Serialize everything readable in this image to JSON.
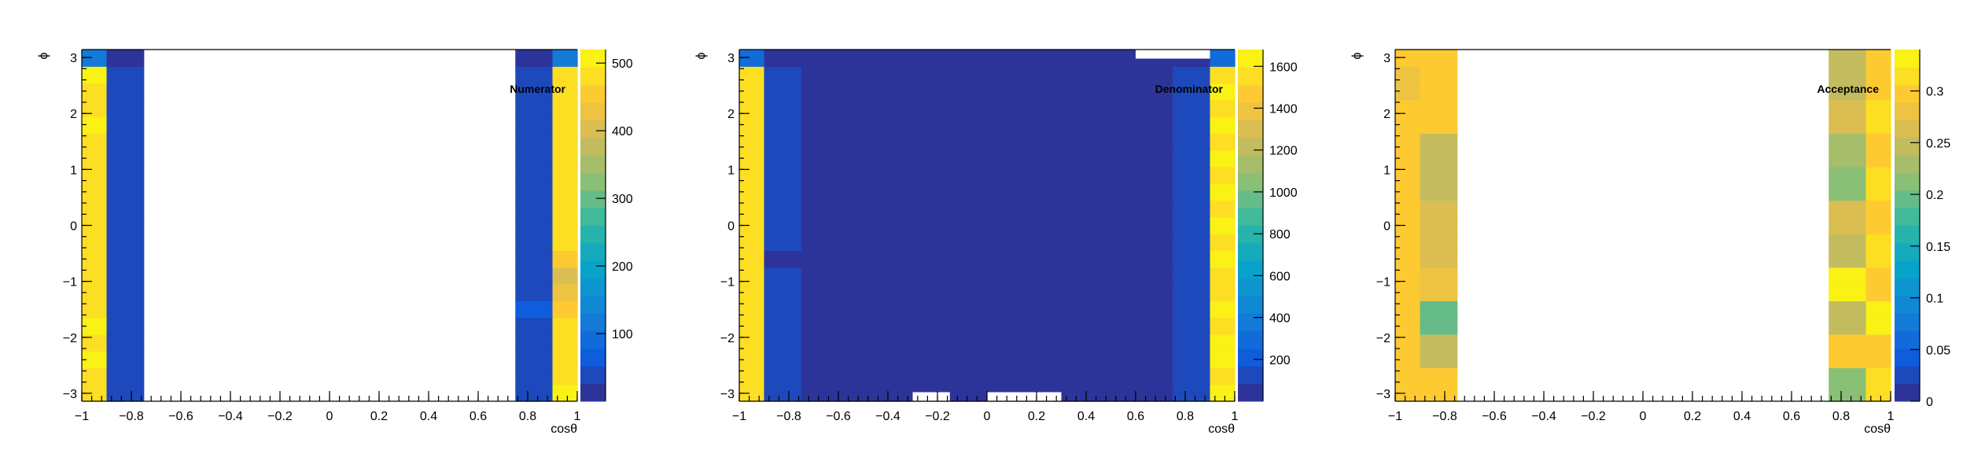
{
  "chart_data": [
    {
      "type": "heatmap",
      "title": "Numerator",
      "xlabel": "cosθ",
      "ylabel": "ϕ",
      "xlim": [
        -1,
        1
      ],
      "ylim": [
        -3.14159,
        3.14159
      ],
      "zlim": [
        0,
        520
      ],
      "x_ticks": [
        "−1",
        "−0.8",
        "−0.6",
        "−0.4",
        "−0.2",
        "0",
        "0.2",
        "0.4",
        "0.6",
        "0.8",
        "1"
      ],
      "y_ticks": [
        "−3",
        "−2",
        "−1",
        "0",
        "1",
        "2",
        "3"
      ],
      "z_ticks": [
        {
          "value": 100,
          "label": "100"
        },
        {
          "value": 200,
          "label": "200"
        },
        {
          "value": 300,
          "label": "300"
        },
        {
          "value": 400,
          "label": "400"
        },
        {
          "value": 500,
          "label": "500"
        }
      ],
      "x_edges": [
        -1.0,
        -0.9,
        -0.75,
        0.75,
        0.9,
        1.0
      ],
      "rows_bottom_to_top": [
        [
          475,
          40,
          null,
          40,
          505
        ],
        [
          485,
          40,
          null,
          40,
          470
        ],
        [
          495,
          40,
          null,
          30,
          480
        ],
        [
          490,
          40,
          null,
          40,
          490
        ],
        [
          495,
          40,
          null,
          40,
          480
        ],
        [
          485,
          30,
          null,
          70,
          460
        ],
        [
          490,
          30,
          null,
          30,
          440
        ],
        [
          480,
          40,
          null,
          30,
          400
        ],
        [
          485,
          40,
          null,
          40,
          450
        ],
        [
          480,
          40,
          null,
          40,
          480
        ],
        [
          480,
          40,
          null,
          40,
          490
        ],
        [
          490,
          40,
          null,
          40,
          480
        ],
        [
          485,
          40,
          null,
          40,
          480
        ],
        [
          490,
          40,
          null,
          40,
          480
        ],
        [
          480,
          40,
          null,
          40,
          480
        ],
        [
          470,
          40,
          null,
          40,
          480
        ],
        [
          495,
          40,
          null,
          40,
          480
        ],
        [
          480,
          40,
          null,
          40,
          480
        ],
        [
          485,
          40,
          null,
          40,
          490
        ],
        [
          495,
          40,
          null,
          40,
          485
        ],
        [
          110,
          5,
          null,
          5,
          110
        ]
      ]
    },
    {
      "type": "heatmap",
      "title": "Denominator",
      "xlabel": "cosθ",
      "ylabel": "ϕ",
      "xlim": [
        -1,
        1
      ],
      "ylim": [
        -3.14159,
        3.14159
      ],
      "zlim": [
        0,
        1680
      ],
      "x_ticks": [
        "−1",
        "−0.8",
        "−0.6",
        "−0.4",
        "−0.2",
        "0",
        "0.2",
        "0.4",
        "0.6",
        "0.8",
        "1"
      ],
      "y_ticks": [
        "−3",
        "−2",
        "−1",
        "0",
        "1",
        "2",
        "3"
      ],
      "z_ticks": [
        {
          "value": 200,
          "label": "200"
        },
        {
          "value": 400,
          "label": "400"
        },
        {
          "value": 600,
          "label": "600"
        },
        {
          "value": 800,
          "label": "800"
        },
        {
          "value": 1000,
          "label": "1000"
        },
        {
          "value": 1200,
          "label": "1200"
        },
        {
          "value": 1400,
          "label": "1400"
        },
        {
          "value": 1600,
          "label": "1600"
        }
      ],
      "x_edges": [
        -1.0,
        -0.9,
        -0.75,
        0.75,
        0.9,
        1.0
      ],
      "rows_bottom_to_top": [
        [
          1570,
          110,
          20,
          110,
          1600
        ],
        [
          1580,
          110,
          20,
          110,
          1560
        ],
        [
          1580,
          110,
          20,
          110,
          1630
        ],
        [
          1570,
          110,
          20,
          110,
          1620
        ],
        [
          1580,
          110,
          20,
          110,
          1590
        ],
        [
          1570,
          110,
          20,
          110,
          1620
        ],
        [
          1580,
          110,
          20,
          110,
          1590
        ],
        [
          1570,
          110,
          20,
          110,
          1590
        ],
        [
          1580,
          80,
          20,
          110,
          1600
        ],
        [
          1570,
          110,
          20,
          110,
          1590
        ],
        [
          1580,
          110,
          20,
          110,
          1600
        ],
        [
          1570,
          110,
          20,
          110,
          1590
        ],
        [
          1580,
          110,
          20,
          110,
          1600
        ],
        [
          1570,
          110,
          20,
          110,
          1590
        ],
        [
          1580,
          110,
          20,
          110,
          1600
        ],
        [
          1570,
          110,
          20,
          110,
          1590
        ],
        [
          1580,
          110,
          20,
          110,
          1600
        ],
        [
          1570,
          110,
          20,
          110,
          1590
        ],
        [
          1580,
          110,
          20,
          110,
          1600
        ],
        [
          1570,
          110,
          20,
          110,
          1590
        ],
        [
          330,
          30,
          10,
          30,
          330
        ]
      ],
      "empty_bins": [
        {
          "x": [
            -0.3,
            -0.15
          ],
          "y": [
            -3.14159,
            -2.98
          ]
        },
        {
          "x": [
            0.0,
            0.3
          ],
          "y": [
            -3.14159,
            -2.98
          ]
        },
        {
          "x": [
            0.6,
            0.9
          ],
          "y": [
            2.98,
            3.14159
          ]
        }
      ]
    },
    {
      "type": "heatmap",
      "title": "Acceptance",
      "xlabel": "cosθ",
      "ylabel": "ϕ",
      "xlim": [
        -1,
        1
      ],
      "ylim": [
        -3.14159,
        3.14159
      ],
      "zlim": [
        0,
        0.34
      ],
      "x_ticks": [
        "−1",
        "−0.8",
        "−0.6",
        "−0.4",
        "−0.2",
        "0",
        "0.2",
        "0.4",
        "0.6",
        "0.8",
        "1"
      ],
      "y_ticks": [
        "−3",
        "−2",
        "−1",
        "0",
        "1",
        "2",
        "3"
      ],
      "z_ticks": [
        {
          "value": 0,
          "label": "0"
        },
        {
          "value": 0.05,
          "label": "0.05"
        },
        {
          "value": 0.1,
          "label": "0.1"
        },
        {
          "value": 0.15,
          "label": "0.15"
        },
        {
          "value": 0.2,
          "label": "0.2"
        },
        {
          "value": 0.25,
          "label": "0.25"
        },
        {
          "value": 0.3,
          "label": "0.3"
        }
      ],
      "x_edges": [
        -1.0,
        -0.9,
        -0.75,
        0.75,
        0.9,
        1.0
      ],
      "rows_bottom_to_top": [
        [
          0.3,
          0.3,
          null,
          0.22,
          0.31
        ],
        [
          0.3,
          0.3,
          null,
          0.22,
          0.31
        ],
        [
          0.29,
          0.25,
          null,
          0.3,
          0.29
        ],
        [
          0.29,
          0.25,
          null,
          0.3,
          0.29
        ],
        [
          0.3,
          0.2,
          null,
          0.24,
          0.33
        ],
        [
          0.3,
          0.2,
          null,
          0.24,
          0.33
        ],
        [
          0.29,
          0.28,
          null,
          0.33,
          0.29
        ],
        [
          0.29,
          0.28,
          null,
          0.33,
          0.29
        ],
        [
          0.3,
          0.26,
          null,
          0.24,
          0.32
        ],
        [
          0.3,
          0.26,
          null,
          0.24,
          0.32
        ],
        [
          0.29,
          0.27,
          null,
          0.27,
          0.3
        ],
        [
          0.29,
          0.27,
          null,
          0.27,
          0.3
        ],
        [
          0.3,
          0.24,
          null,
          0.22,
          0.31
        ],
        [
          0.3,
          0.24,
          null,
          0.22,
          0.31
        ],
        [
          0.29,
          0.25,
          null,
          0.23,
          0.3
        ],
        [
          0.29,
          0.25,
          null,
          0.23,
          0.3
        ],
        [
          0.29,
          0.29,
          null,
          0.26,
          0.31
        ],
        [
          0.29,
          0.29,
          null,
          0.26,
          0.31
        ],
        [
          0.28,
          0.3,
          null,
          0.25,
          0.3
        ],
        [
          0.28,
          0.3,
          null,
          0.25,
          0.3
        ],
        [
          0.29,
          0.3,
          null,
          0.25,
          0.3
        ]
      ]
    }
  ]
}
